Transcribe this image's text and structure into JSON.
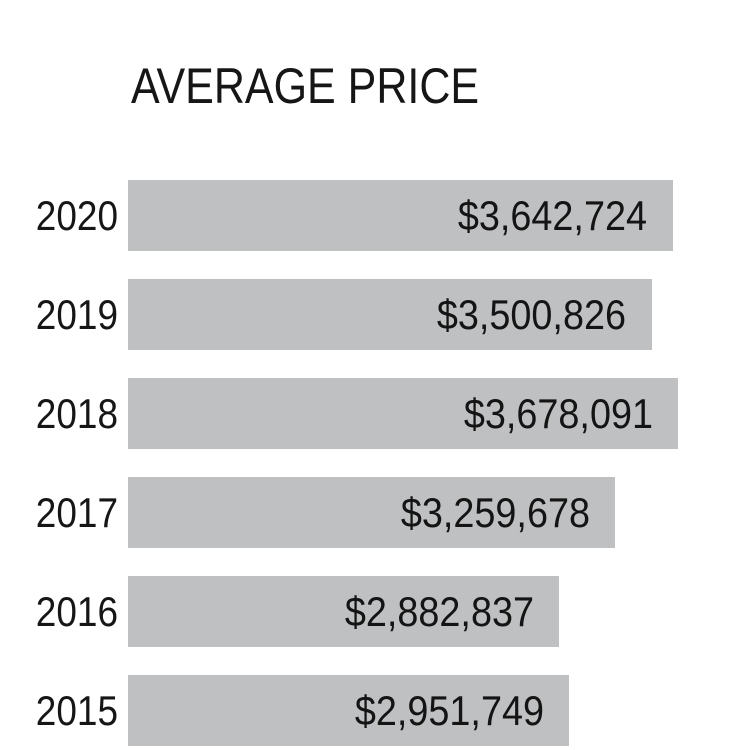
{
  "chart_data": {
    "type": "bar",
    "orientation": "horizontal",
    "title": "AVERAGE PRICE",
    "categories": [
      "2020",
      "2019",
      "2018",
      "2017",
      "2016",
      "2015"
    ],
    "values": [
      3642724,
      3500826,
      3678091,
      3259678,
      2882837,
      2951749
    ],
    "value_labels": [
      "$3,642,724",
      "$3,500,826",
      "$3,678,091",
      "$3,259,678",
      "$2,882,837",
      "$2,951,749"
    ],
    "xlim": [
      0,
      3678091
    ],
    "grid": "off",
    "legend": "none",
    "value_label_position": "inside-end",
    "bar_color": "#bfc0c2",
    "text_color": "#161616",
    "background_color": "#ffffff"
  }
}
